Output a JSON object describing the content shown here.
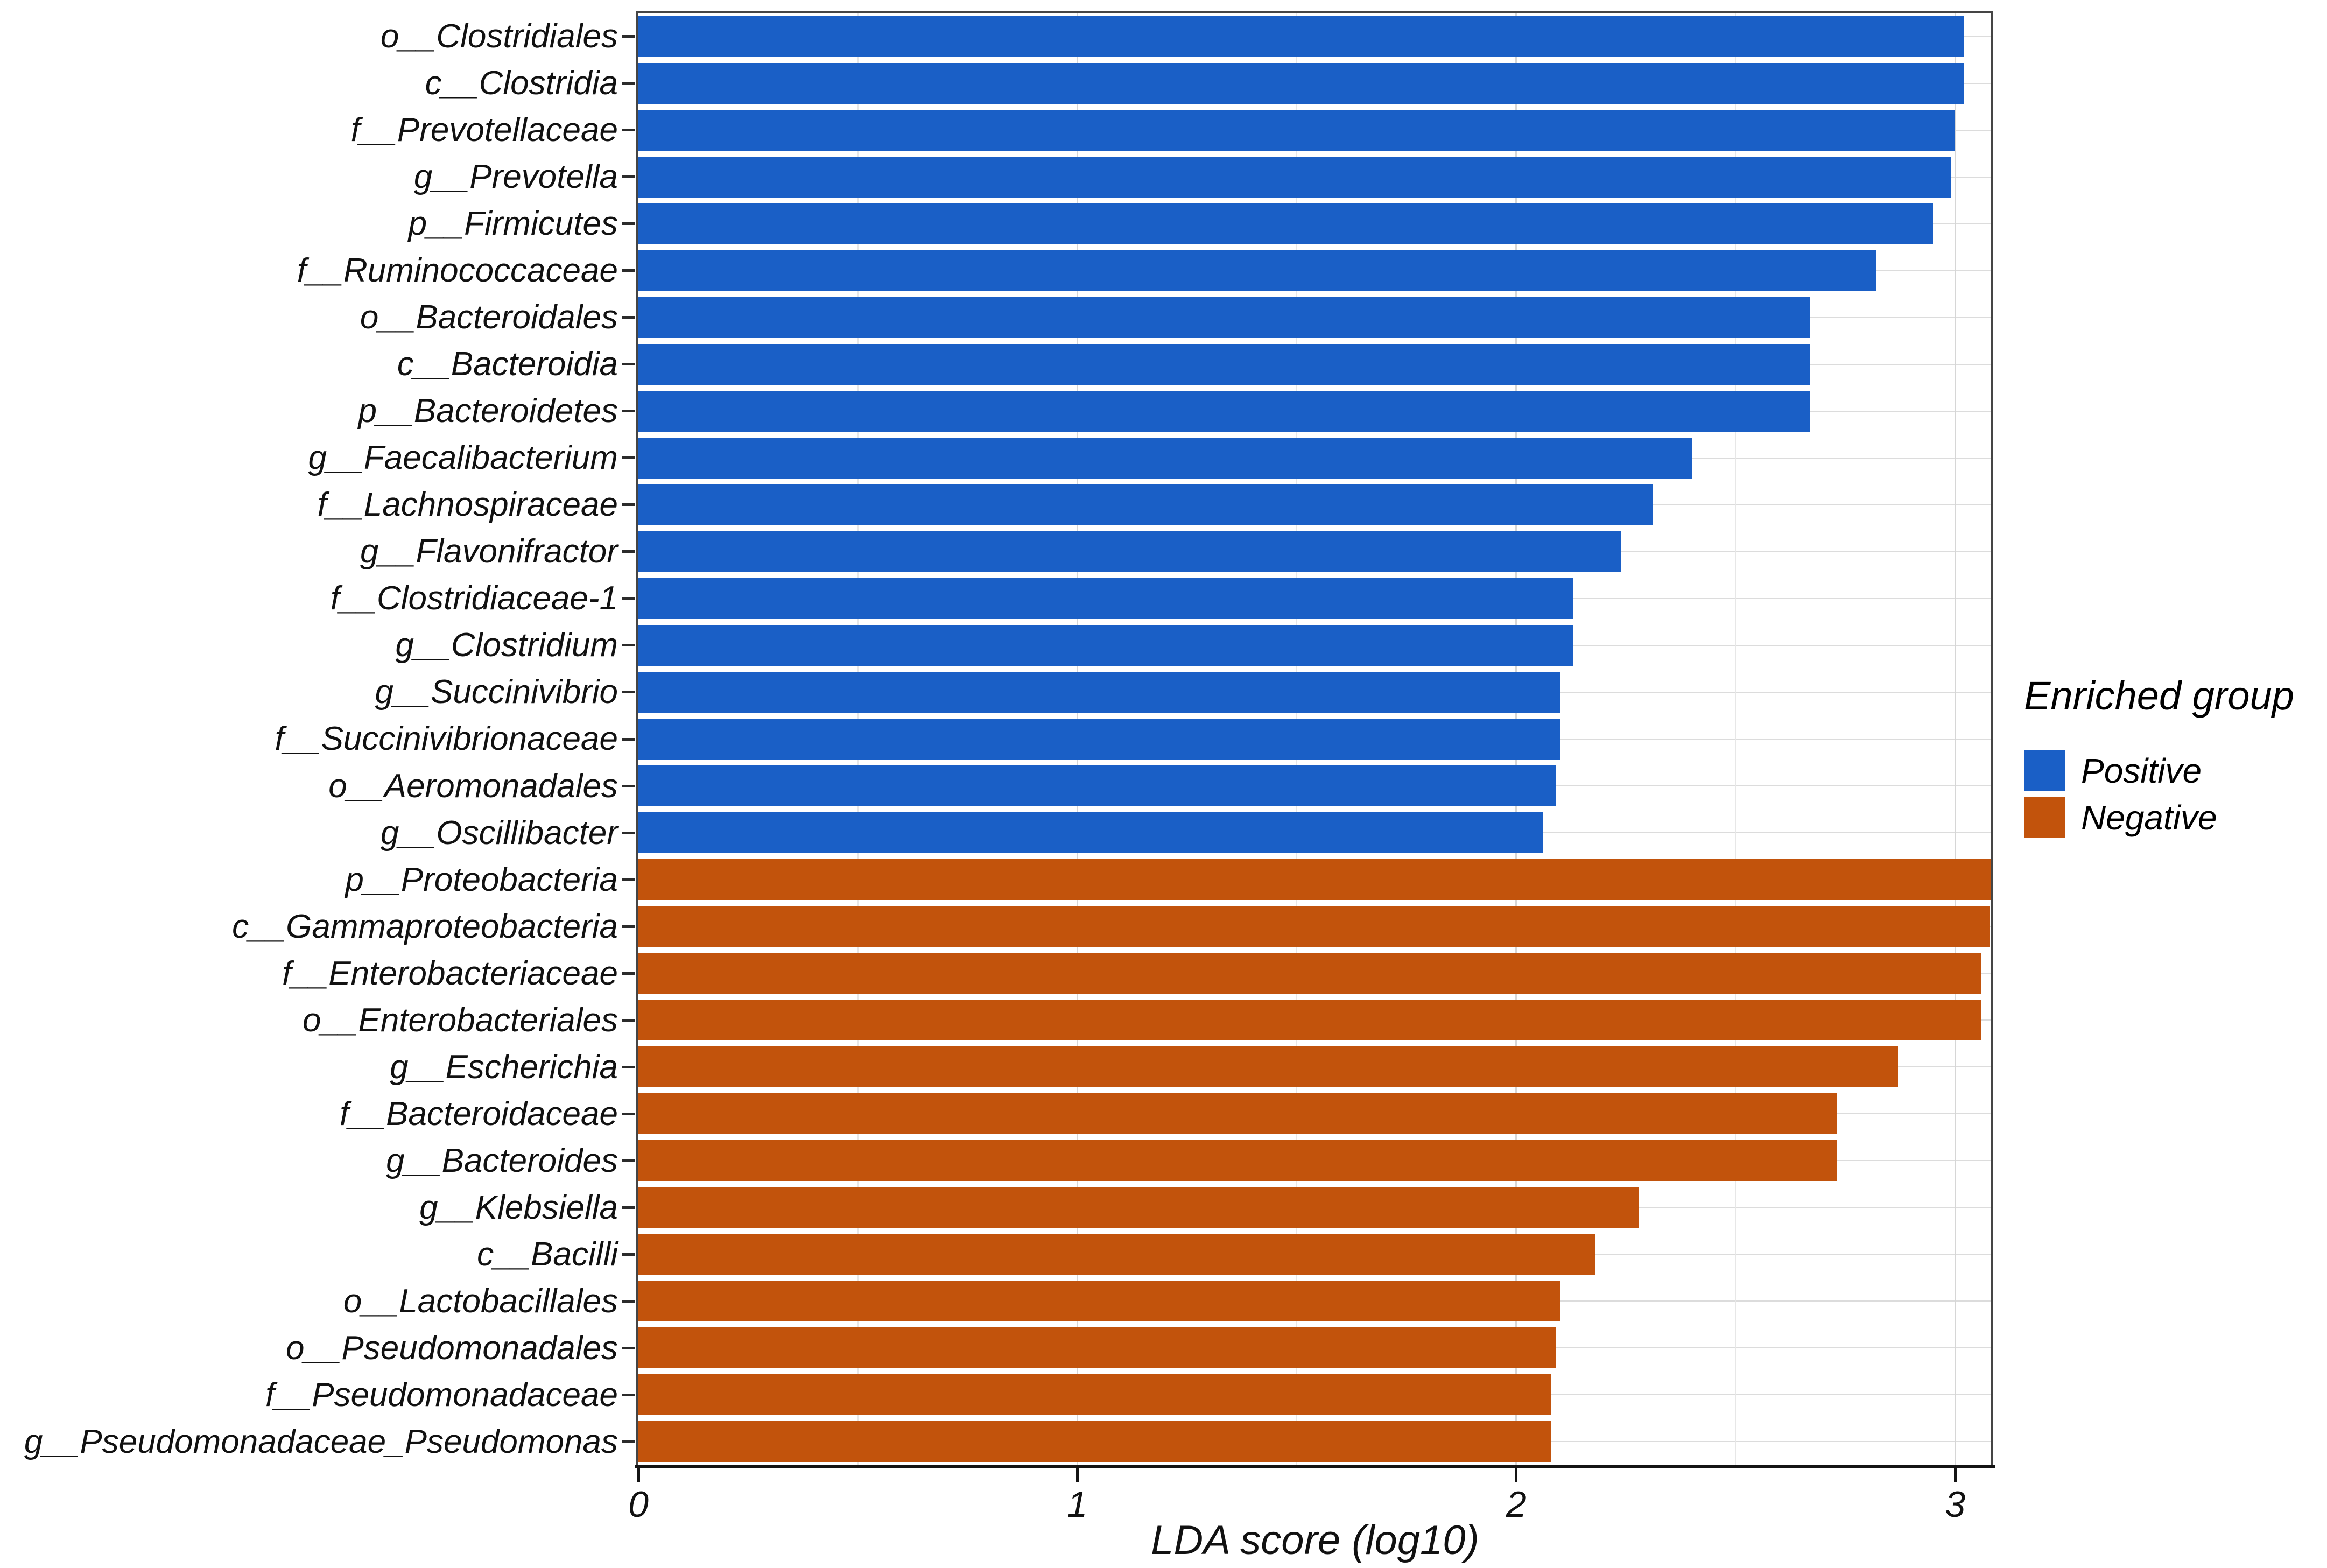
{
  "figure": {
    "x_axis": {
      "title": "LDA score (log10)",
      "tick_labels": [
        "0",
        "1",
        "2",
        "3"
      ]
    },
    "legend": {
      "title": "Enriched group",
      "items": [
        {
          "label": "Positive",
          "color": "#1A5FC6"
        },
        {
          "label": "Negative",
          "color": "#C2530C"
        }
      ]
    }
  },
  "chart_data": {
    "type": "bar",
    "orientation": "horizontal",
    "title": "",
    "xlabel": "LDA score (log10)",
    "ylabel": "",
    "xlim": [
      0,
      3.082
    ],
    "x_major_ticks": [
      0,
      1,
      2,
      3
    ],
    "x_minor_gridlines": [
      0.5,
      1.5,
      2.5
    ],
    "grid": true,
    "legend_position": "right",
    "legend_title": "Enriched group",
    "groups": [
      {
        "name": "Positive",
        "color": "#1A5FC6"
      },
      {
        "name": "Negative",
        "color": "#C2530C"
      }
    ],
    "items": [
      {
        "label": "o__Clostridiales",
        "value": 3.02,
        "group": "Positive"
      },
      {
        "label": "c__Clostridia",
        "value": 3.02,
        "group": "Positive"
      },
      {
        "label": "f__Prevotellaceae",
        "value": 3.0,
        "group": "Positive"
      },
      {
        "label": "g__Prevotella",
        "value": 2.99,
        "group": "Positive"
      },
      {
        "label": "p__Firmicutes",
        "value": 2.95,
        "group": "Positive"
      },
      {
        "label": "f__Ruminococcaceae",
        "value": 2.82,
        "group": "Positive"
      },
      {
        "label": "o__Bacteroidales",
        "value": 2.67,
        "group": "Positive"
      },
      {
        "label": "c__Bacteroidia",
        "value": 2.67,
        "group": "Positive"
      },
      {
        "label": "p__Bacteroidetes",
        "value": 2.67,
        "group": "Positive"
      },
      {
        "label": "g__Faecalibacterium",
        "value": 2.4,
        "group": "Positive"
      },
      {
        "label": "f__Lachnospiraceae",
        "value": 2.31,
        "group": "Positive"
      },
      {
        "label": "g__Flavonifractor",
        "value": 2.24,
        "group": "Positive"
      },
      {
        "label": "f__Clostridiaceae-1",
        "value": 2.13,
        "group": "Positive"
      },
      {
        "label": "g__Clostridium",
        "value": 2.13,
        "group": "Positive"
      },
      {
        "label": "g__Succinivibrio",
        "value": 2.1,
        "group": "Positive"
      },
      {
        "label": "f__Succinivibrionaceae",
        "value": 2.1,
        "group": "Positive"
      },
      {
        "label": "o__Aeromonadales",
        "value": 2.09,
        "group": "Positive"
      },
      {
        "label": "g__Oscillibacter",
        "value": 2.06,
        "group": "Positive"
      },
      {
        "label": "p__Proteobacteria",
        "value": 3.09,
        "group": "Negative"
      },
      {
        "label": "c__Gammaproteobacteria",
        "value": 3.08,
        "group": "Negative"
      },
      {
        "label": "f__Enterobacteriaceae",
        "value": 3.06,
        "group": "Negative"
      },
      {
        "label": "o__Enterobacteriales",
        "value": 3.06,
        "group": "Negative"
      },
      {
        "label": "g__Escherichia",
        "value": 2.87,
        "group": "Negative"
      },
      {
        "label": "f__Bacteroidaceae",
        "value": 2.73,
        "group": "Negative"
      },
      {
        "label": "g__Bacteroides",
        "value": 2.73,
        "group": "Negative"
      },
      {
        "label": "g__Klebsiella",
        "value": 2.28,
        "group": "Negative"
      },
      {
        "label": "c__Bacilli",
        "value": 2.18,
        "group": "Negative"
      },
      {
        "label": "o__Lactobacillales",
        "value": 2.1,
        "group": "Negative"
      },
      {
        "label": "o__Pseudomonadales",
        "value": 2.09,
        "group": "Negative"
      },
      {
        "label": "f__Pseudomonadaceae",
        "value": 2.08,
        "group": "Negative"
      },
      {
        "label": "g__Pseudomonadaceae_Pseudomonas",
        "value": 2.08,
        "group": "Negative"
      }
    ]
  }
}
